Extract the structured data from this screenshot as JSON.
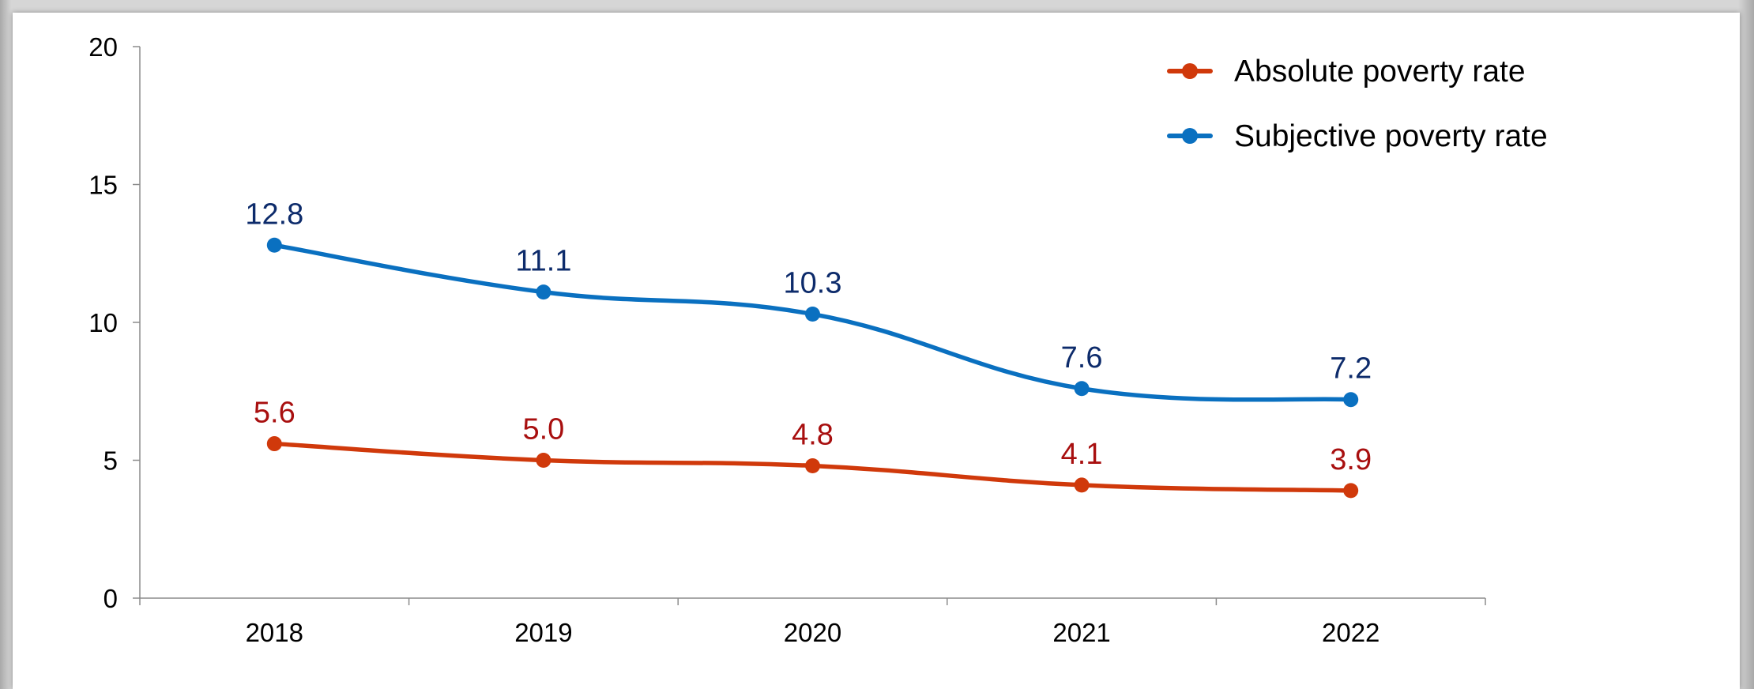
{
  "chart_data": {
    "type": "line",
    "title": "",
    "xlabel": "",
    "ylabel": "",
    "categories": [
      "2018",
      "2019",
      "2020",
      "2021",
      "2022"
    ],
    "ylim": [
      0,
      20
    ],
    "yticks": [
      "0",
      "5",
      "10",
      "15",
      "20"
    ],
    "grid": false,
    "smooth": true,
    "legend_position": "top-right",
    "series": [
      {
        "name": "Absolute poverty rate",
        "values": [
          5.6,
          5.0,
          4.8,
          4.1,
          3.9
        ],
        "labels": [
          "5.6",
          "5.0",
          "4.8",
          "4.1",
          "3.9"
        ],
        "color": "#D0390B",
        "label_color": "#A80F0F"
      },
      {
        "name": "Subjective poverty rate",
        "values": [
          12.8,
          11.1,
          10.3,
          7.6,
          7.2
        ],
        "labels": [
          "12.8",
          "11.1",
          "10.3",
          "7.6",
          "7.2"
        ],
        "color": "#0A70C0",
        "label_color": "#0D2B6B"
      }
    ]
  }
}
